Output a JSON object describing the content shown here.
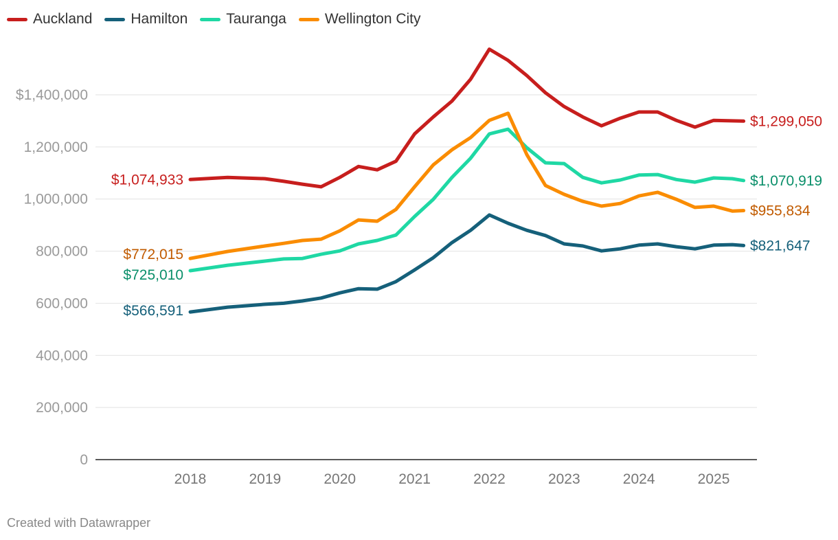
{
  "chart_data": {
    "type": "line",
    "title": "",
    "xlabel": "",
    "ylabel": "",
    "xlim": [
      2016.75,
      2025.6
    ],
    "ylim": [
      0,
      1580000
    ],
    "grid": true,
    "legend_position": "top-left",
    "x_ticks": [
      2018,
      2019,
      2020,
      2021,
      2022,
      2023,
      2024,
      2025
    ],
    "x_tick_labels": [
      "2018",
      "2019",
      "2020",
      "2021",
      "2022",
      "2023",
      "2024",
      "2025"
    ],
    "y_ticks": [
      0,
      200000,
      400000,
      600000,
      800000,
      1000000,
      1200000,
      1400000
    ],
    "y_tick_labels": [
      "0",
      "200,000",
      "400,000",
      "600,000",
      "800,000",
      "1,000,000",
      "1,200,000",
      "$1,400,000"
    ],
    "x": [
      2018.0,
      2018.5,
      2019.0,
      2019.25,
      2019.5,
      2019.75,
      2020.0,
      2020.25,
      2020.5,
      2020.75,
      2021.0,
      2021.25,
      2021.5,
      2021.75,
      2022.0,
      2022.25,
      2022.5,
      2022.75,
      2023.0,
      2023.25,
      2023.5,
      2023.75,
      2024.0,
      2024.25,
      2024.5,
      2024.75,
      2025.0,
      2025.25,
      2025.4
    ],
    "series": [
      {
        "name": "Auckland",
        "color": "#c71e1d",
        "label_color": "#c71e1d",
        "start_label": "$1,074,933",
        "end_label": "$1,299,050",
        "values": [
          1074933,
          1083000,
          1078000,
          1068000,
          1057000,
          1047000,
          1083000,
          1125000,
          1112000,
          1145000,
          1250000,
          1315000,
          1376000,
          1460000,
          1575000,
          1532000,
          1474000,
          1408000,
          1355000,
          1315000,
          1281000,
          1310000,
          1334000,
          1334000,
          1302000,
          1276000,
          1302000,
          1300000,
          1299050
        ]
      },
      {
        "name": "Hamilton",
        "color": "#15607a",
        "label_color": "#15607a",
        "start_label": "$566,591",
        "end_label": "$821,647",
        "values": [
          566591,
          585000,
          596000,
          600000,
          609000,
          620000,
          640000,
          656000,
          654000,
          683000,
          728000,
          775000,
          833000,
          880000,
          939000,
          907000,
          880000,
          860000,
          828000,
          820000,
          801000,
          809000,
          823000,
          828000,
          817000,
          809000,
          823000,
          825000,
          821647
        ]
      },
      {
        "name": "Tauranga",
        "color": "#1fd8a4",
        "label_color": "#0a8f6a",
        "start_label": "$725,010",
        "end_label": "$1,070,919",
        "values": [
          725010,
          746000,
          762000,
          770000,
          772000,
          788000,
          801000,
          828000,
          841000,
          862000,
          933000,
          999000,
          1083000,
          1157000,
          1250000,
          1268000,
          1197000,
          1139000,
          1136000,
          1083000,
          1062000,
          1073000,
          1092000,
          1094000,
          1075000,
          1065000,
          1081000,
          1078000,
          1070919
        ]
      },
      {
        "name": "Wellington City",
        "color": "#fa8c00",
        "label_color": "#c15b00",
        "start_label": "$772,015",
        "end_label": "$955,834",
        "values": [
          772015,
          799000,
          820000,
          830000,
          841000,
          846000,
          878000,
          920000,
          915000,
          960000,
          1047000,
          1131000,
          1189000,
          1236000,
          1302000,
          1329000,
          1171000,
          1052000,
          1018000,
          991000,
          973000,
          983000,
          1012000,
          1026000,
          999000,
          968000,
          973000,
          954000,
          955834
        ]
      }
    ]
  },
  "footer": "Created with Datawrapper"
}
